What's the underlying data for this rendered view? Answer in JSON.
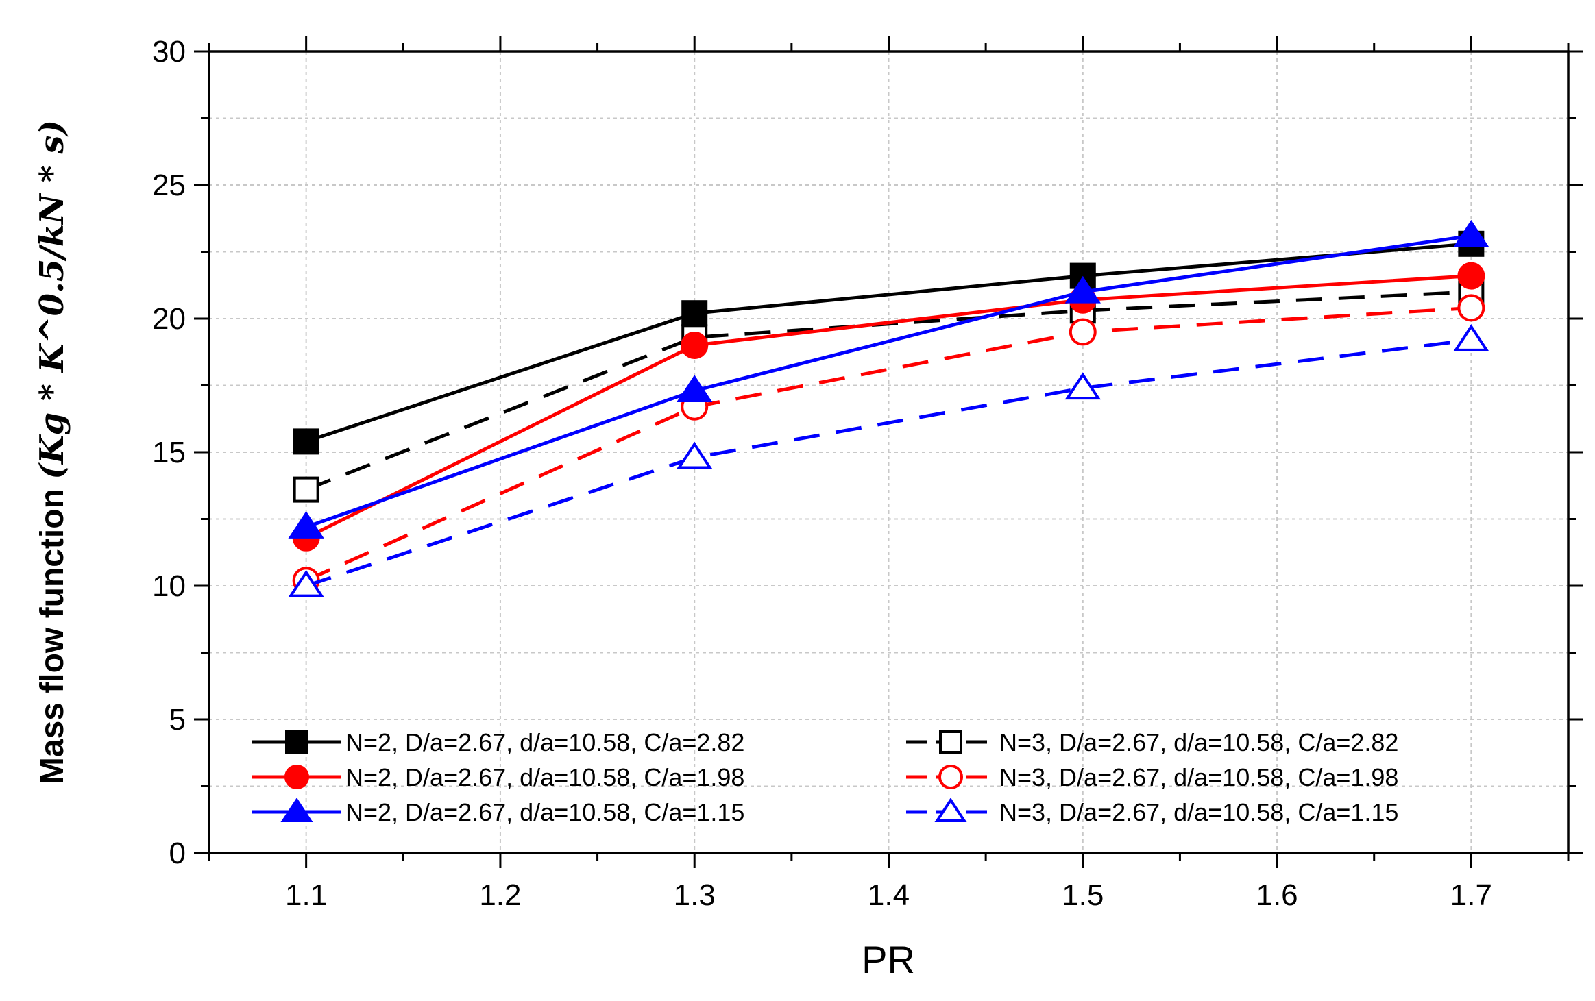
{
  "chart_data": {
    "type": "line",
    "title": "",
    "xlabel": "PR",
    "ylabel": {
      "prefix": "Mass flow function ",
      "math": "(Kg * K^0.5/kN * s)"
    },
    "x": [
      1.1,
      1.3,
      1.5,
      1.7
    ],
    "xlim": [
      1.05,
      1.75
    ],
    "ylim": [
      0,
      30
    ],
    "xticks": [
      "1.1",
      "1.2",
      "1.3",
      "1.4",
      "1.5",
      "1.6",
      "1.7"
    ],
    "yticks": [
      "0",
      "5",
      "10",
      "15",
      "20",
      "25",
      "30"
    ],
    "grid": true,
    "legend_position": "bottom",
    "series": [
      {
        "name": "N=2, D/a=2.67, d/a=10.58, C/a=2.82",
        "values": [
          15.4,
          20.2,
          21.6,
          22.8
        ],
        "color": "#000000",
        "marker": "square",
        "filled": true,
        "dashed": false
      },
      {
        "name": "N=2, D/a=2.67, d/a=10.58, C/a=1.98",
        "values": [
          11.8,
          19.0,
          20.7,
          21.6
        ],
        "color": "#ff0000",
        "marker": "circle",
        "filled": true,
        "dashed": false
      },
      {
        "name": "N=2, D/a=2.67, d/a=10.58, C/a=1.15",
        "values": [
          12.2,
          17.3,
          21.0,
          23.1
        ],
        "color": "#0000ff",
        "marker": "triangle",
        "filled": true,
        "dashed": false
      },
      {
        "name": "N=3, D/a=2.67, d/a=10.58, C/a=2.82",
        "values": [
          13.6,
          19.3,
          20.3,
          21.0
        ],
        "color": "#000000",
        "marker": "square",
        "filled": false,
        "dashed": true
      },
      {
        "name": "N=3, D/a=2.67, d/a=10.58, C/a=1.98",
        "values": [
          10.2,
          16.7,
          19.5,
          20.4
        ],
        "color": "#ff0000",
        "marker": "circle",
        "filled": false,
        "dashed": true
      },
      {
        "name": "N=3, D/a=2.67, d/a=10.58, C/a=1.15",
        "values": [
          10.0,
          14.8,
          17.4,
          19.2
        ],
        "color": "#0000ff",
        "marker": "triangle",
        "filled": false,
        "dashed": true
      }
    ]
  }
}
